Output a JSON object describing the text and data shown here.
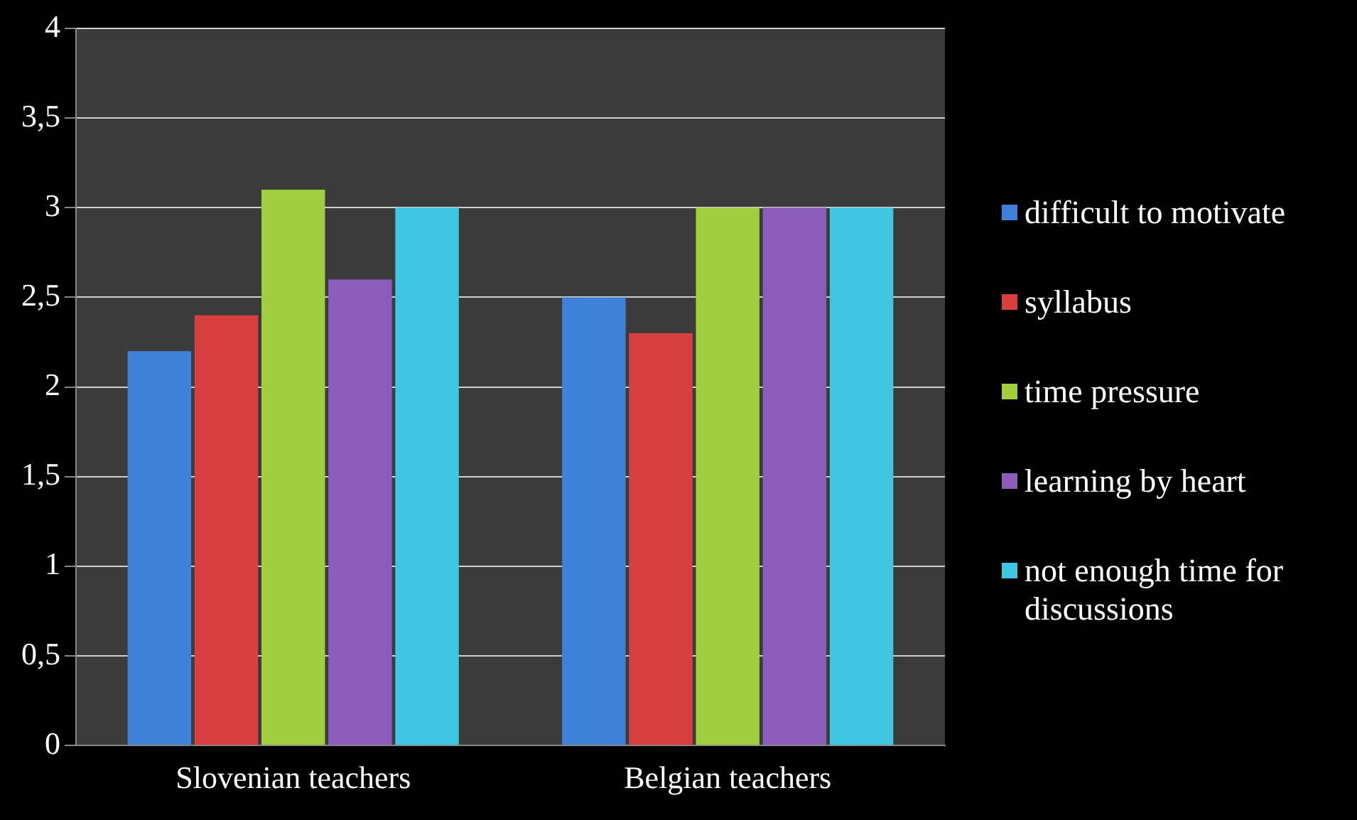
{
  "chart_data": {
    "type": "bar",
    "categories": [
      "Slovenian teachers",
      "Belgian teachers"
    ],
    "series": [
      {
        "name": "difficult to motivate",
        "color": "#3f80d8",
        "values": [
          2.2,
          2.5
        ]
      },
      {
        "name": "syllabus",
        "color": "#d83f3f",
        "values": [
          2.4,
          2.3
        ]
      },
      {
        "name": "time pressure",
        "color": "#9fce3f",
        "values": [
          3.1,
          3.0
        ]
      },
      {
        "name": "learning by heart",
        "color": "#8c5cba",
        "values": [
          2.6,
          3.0
        ]
      },
      {
        "name": "not enough time for discussions",
        "color": "#3fc6e2",
        "values": [
          3.0,
          3.0
        ]
      }
    ],
    "ylim": [
      0,
      4
    ],
    "yticks": [
      0,
      {
        "value": 0.5,
        "label": "0,5"
      },
      1,
      {
        "value": 1.5,
        "label": "1,5"
      },
      2,
      {
        "value": 2.5,
        "label": "2,5"
      },
      3,
      {
        "value": 3.5,
        "label": "3,5"
      },
      4
    ],
    "grid": "y",
    "legend": "right"
  }
}
